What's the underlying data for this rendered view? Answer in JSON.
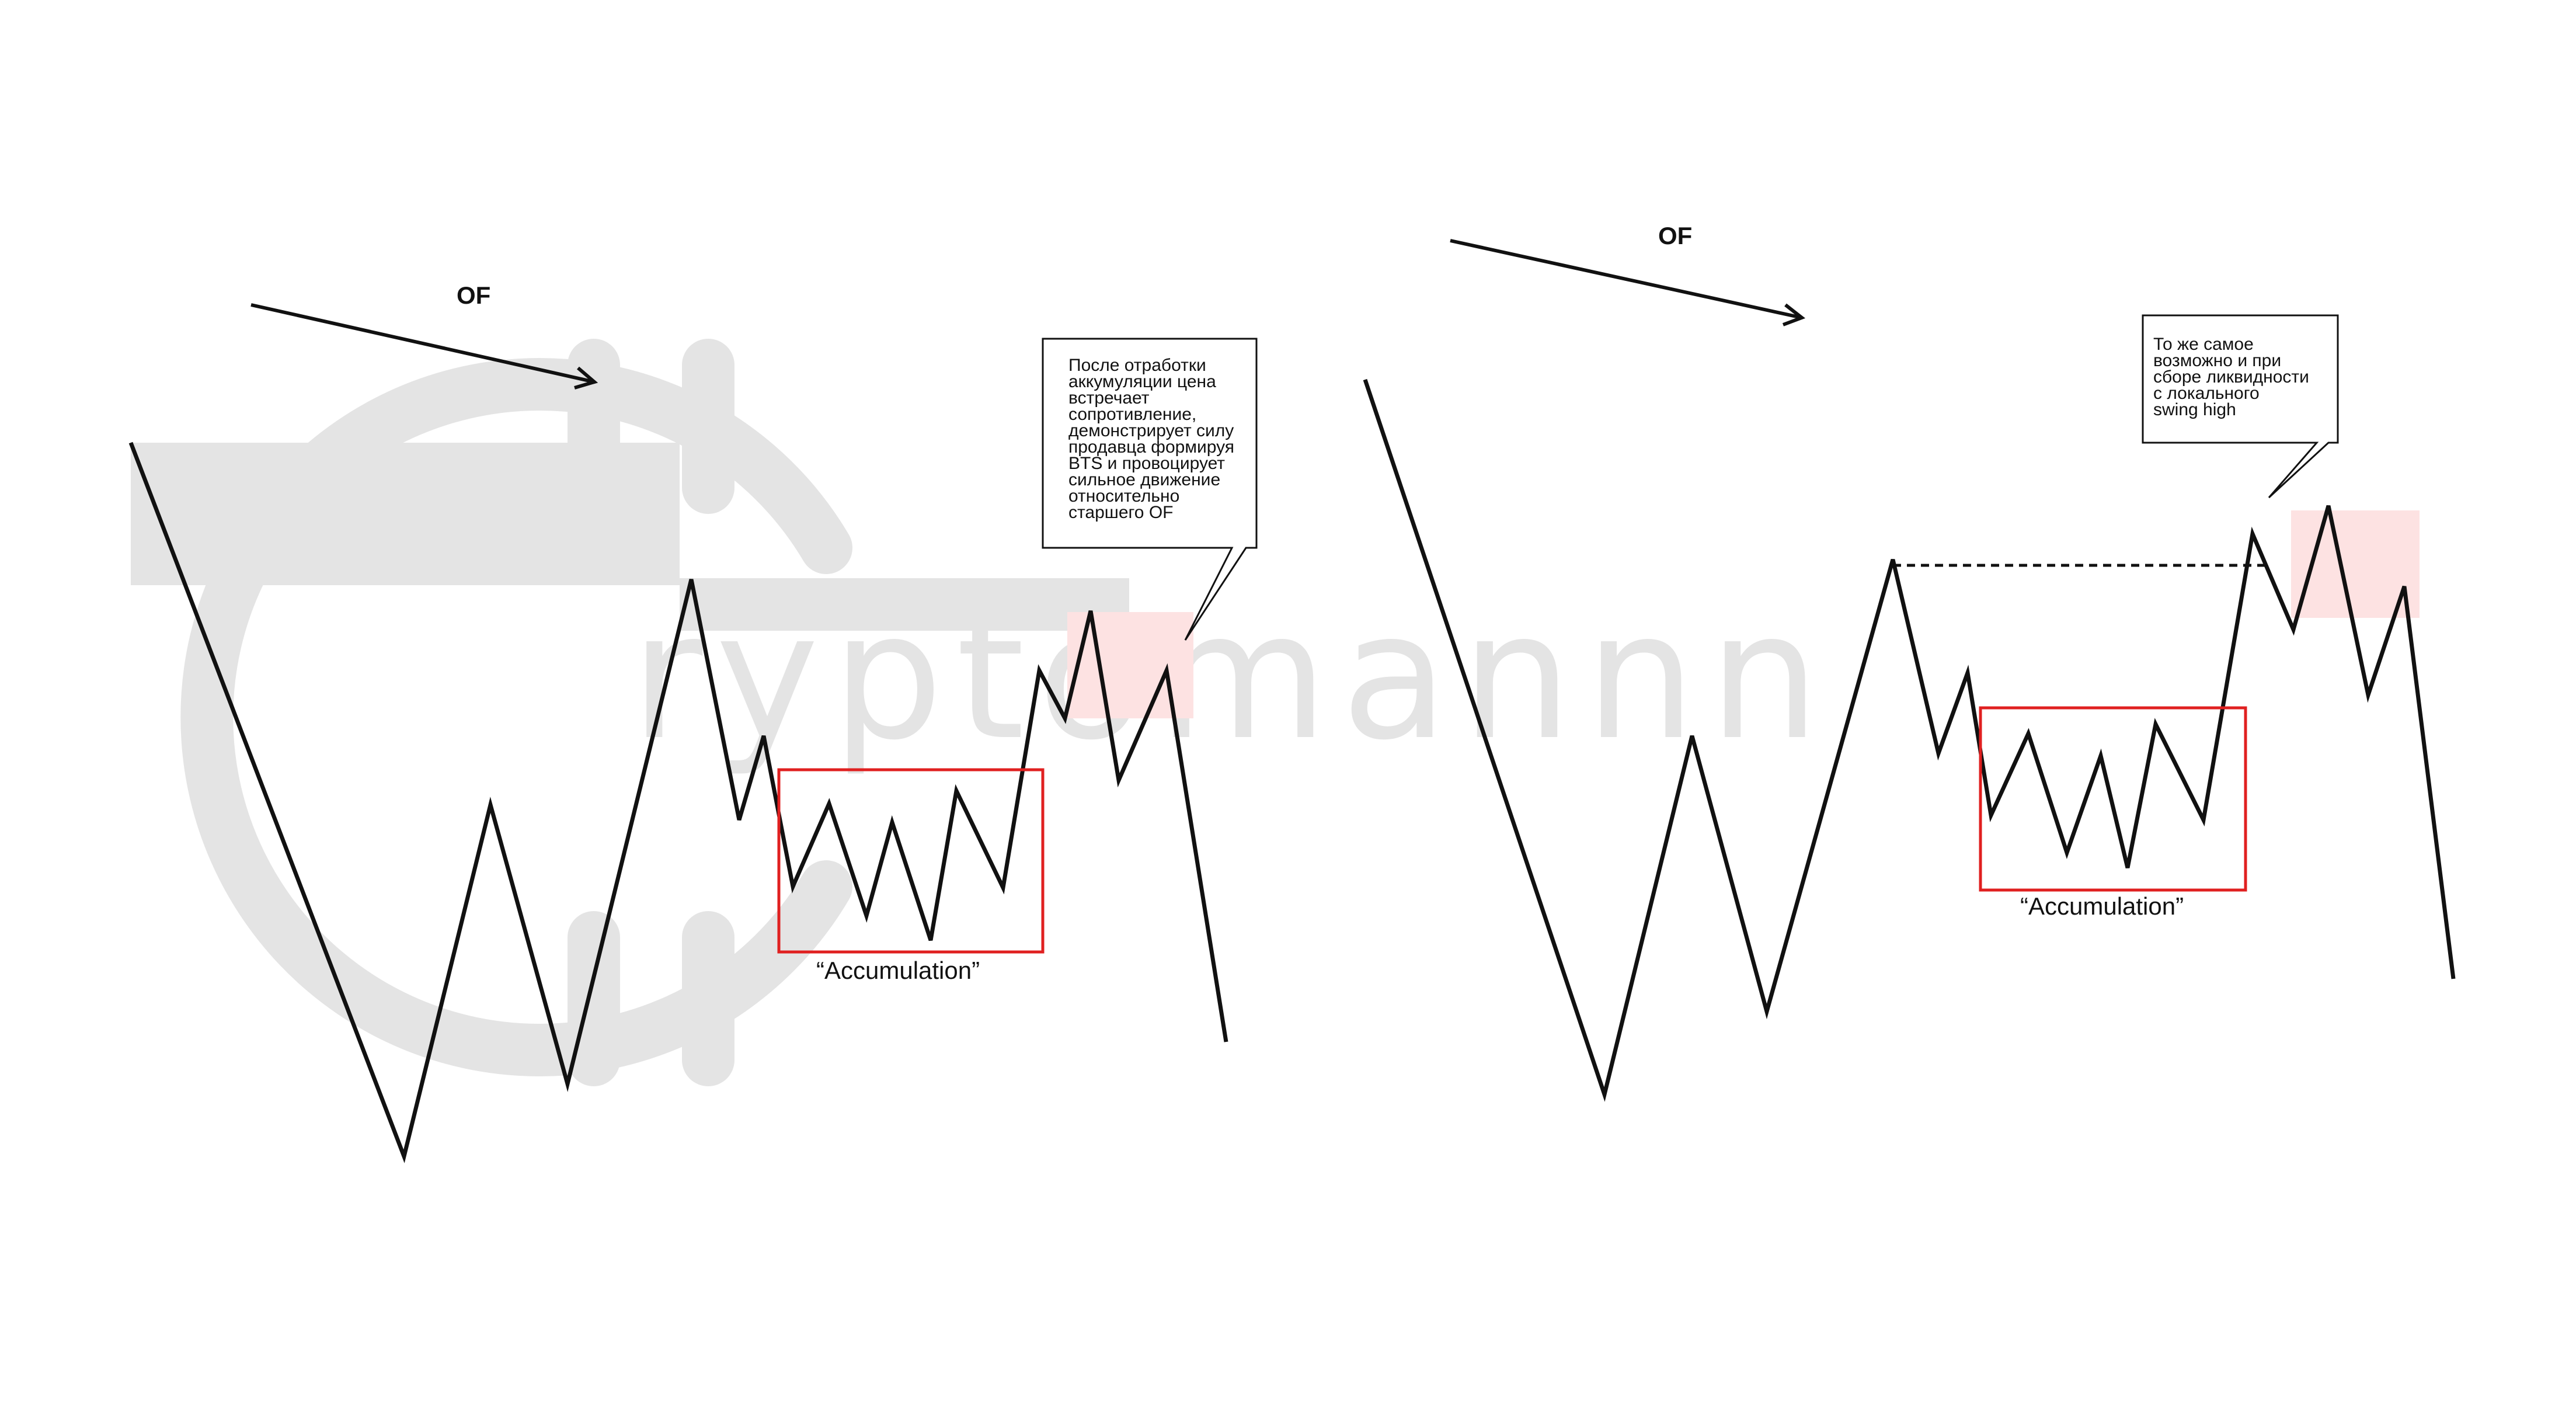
{
  "watermark": {
    "text": "ryptomannn"
  },
  "colors": {
    "price_line": "#111111",
    "accumulation_box": "#e02020",
    "supply_zone": "#fde2e2",
    "watermark": "#e4e4e4"
  },
  "left_panel": {
    "order_flow_label": "OF",
    "accumulation_label": "“Accumulation”",
    "callout_lines": [
      "После отработки",
      "аккумуляции цена",
      "встречает",
      "сопротивление,",
      "демонстрирует силу",
      "продавца формируя",
      "BTS и провоцирует",
      "сильное движение",
      "относительно",
      "старшего OF"
    ]
  },
  "right_panel": {
    "order_flow_label": "OF",
    "accumulation_label": "“Accumulation”",
    "callout_lines": [
      "То же самое",
      "возможно и при",
      "сборе ликвидности",
      "с локального",
      "swing high"
    ]
  }
}
